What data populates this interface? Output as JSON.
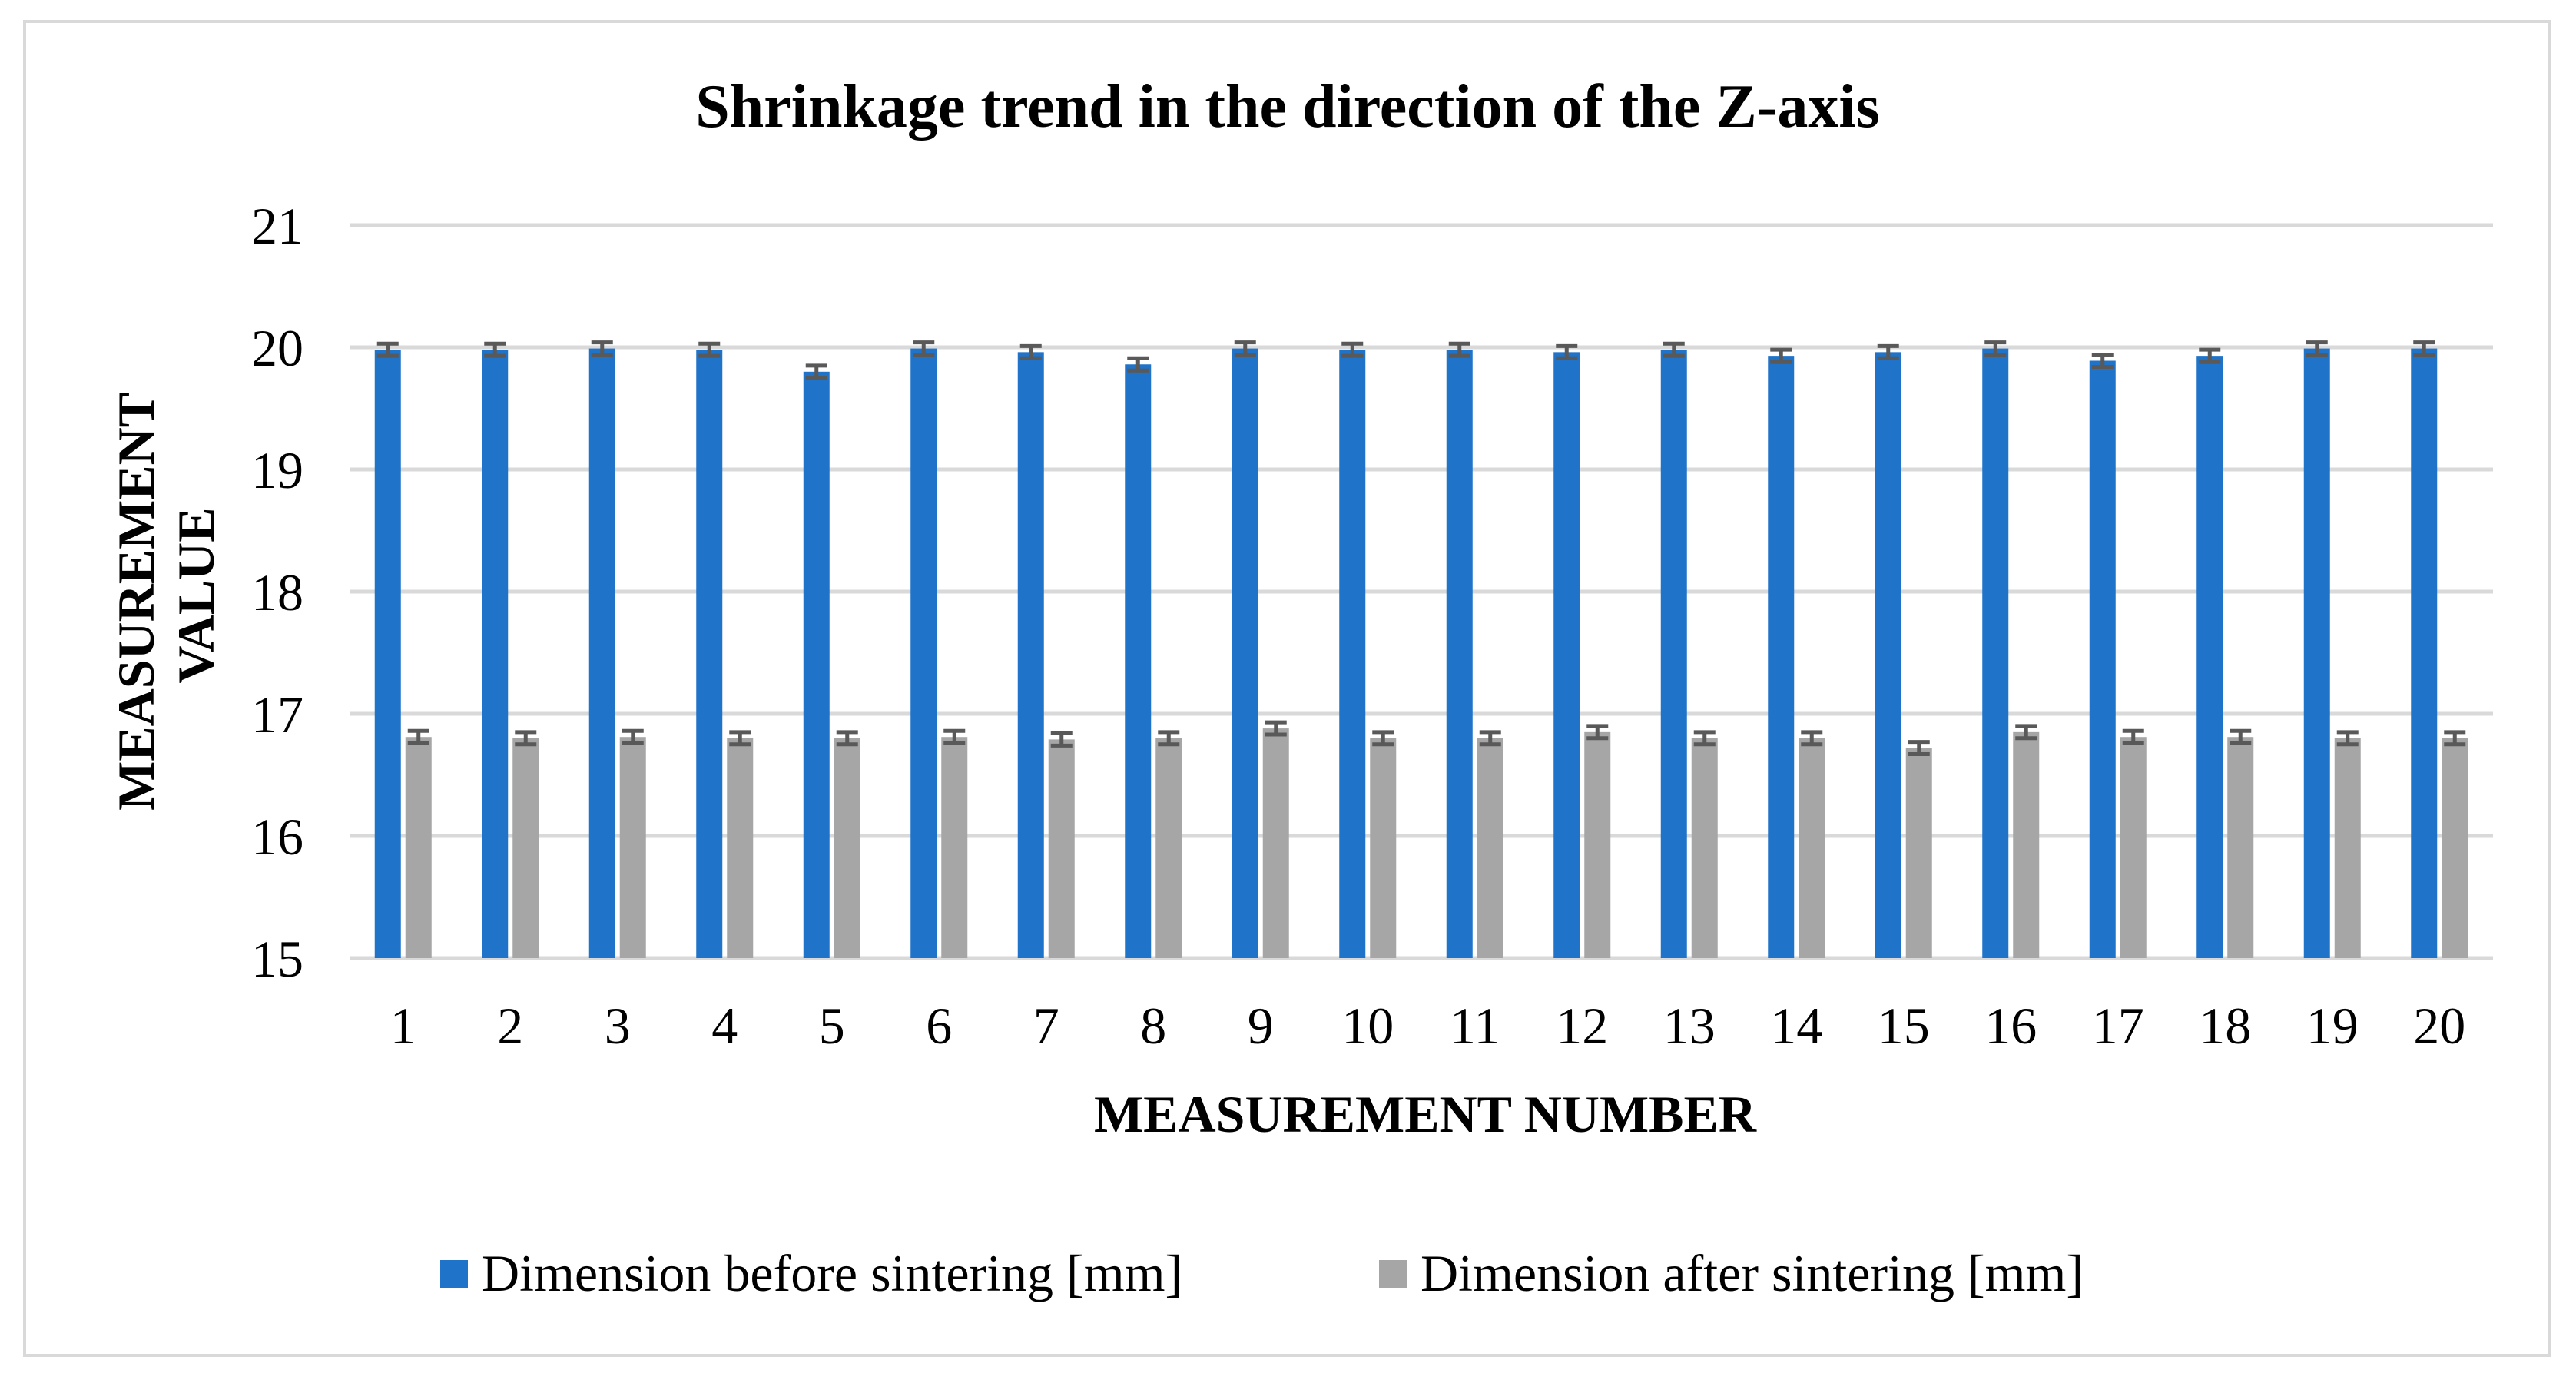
{
  "chart_data": {
    "type": "bar",
    "title": "Shrinkage trend in the direction of the Z-axis",
    "xlabel": "MEASUREMENT NUMBER",
    "ylabel_lines": [
      "MEASUREMENT",
      "VALUE"
    ],
    "categories": [
      "1",
      "2",
      "3",
      "4",
      "5",
      "6",
      "7",
      "8",
      "9",
      "10",
      "11",
      "12",
      "13",
      "14",
      "15",
      "16",
      "17",
      "18",
      "19",
      "20"
    ],
    "ylim": [
      15,
      21
    ],
    "yticks": [
      15,
      16,
      17,
      18,
      19,
      20,
      21
    ],
    "grid": true,
    "legend_position": "bottom",
    "error_bars": true,
    "error_bar_half_width": 0.05,
    "series": [
      {
        "name": "Dimension before sintering [mm]",
        "color": "#1f73c8",
        "values": [
          19.98,
          19.98,
          19.99,
          19.98,
          19.8,
          19.99,
          19.96,
          19.86,
          19.99,
          19.98,
          19.98,
          19.96,
          19.98,
          19.93,
          19.96,
          19.99,
          19.89,
          19.93,
          19.99,
          19.99
        ]
      },
      {
        "name": "Dimension after sintering [mm]",
        "color": "#a6a6a6",
        "values": [
          16.81,
          16.8,
          16.81,
          16.8,
          16.8,
          16.81,
          16.79,
          16.8,
          16.88,
          16.8,
          16.8,
          16.85,
          16.8,
          16.8,
          16.72,
          16.85,
          16.81,
          16.81,
          16.8,
          16.8
        ]
      }
    ],
    "error_bar_color": "#595959",
    "grid_color": "#d9d9d9"
  }
}
